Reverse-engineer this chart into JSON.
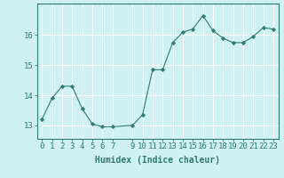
{
  "x": [
    0,
    1,
    2,
    3,
    4,
    5,
    6,
    7,
    9,
    10,
    11,
    12,
    13,
    14,
    15,
    16,
    17,
    18,
    19,
    20,
    21,
    22,
    23
  ],
  "y": [
    13.2,
    13.9,
    14.3,
    14.3,
    13.55,
    13.05,
    12.95,
    12.95,
    13.0,
    13.35,
    14.85,
    14.85,
    15.75,
    16.1,
    16.2,
    16.65,
    16.15,
    15.9,
    15.75,
    15.75,
    15.95,
    16.25,
    16.2
  ],
  "line_color": "#2e7d6e",
  "marker": "D",
  "marker_size": 2.2,
  "bg_color": "#cff1f1",
  "grid_color": "#ffffff",
  "xlabel": "Humidex (Indice chaleur)",
  "xlabel_color": "#2e7d6e",
  "tick_color": "#2e7d6e",
  "axis_color": "#2e7d6e",
  "xlim": [
    -0.5,
    23.5
  ],
  "ylim": [
    12.55,
    17.05
  ],
  "yticks": [
    13,
    14,
    15,
    16
  ],
  "xticks": [
    0,
    1,
    2,
    3,
    4,
    5,
    6,
    7,
    9,
    10,
    11,
    12,
    13,
    14,
    15,
    16,
    17,
    18,
    19,
    20,
    21,
    22,
    23
  ],
  "xlabel_fontsize": 7,
  "tick_fontsize": 6.5
}
